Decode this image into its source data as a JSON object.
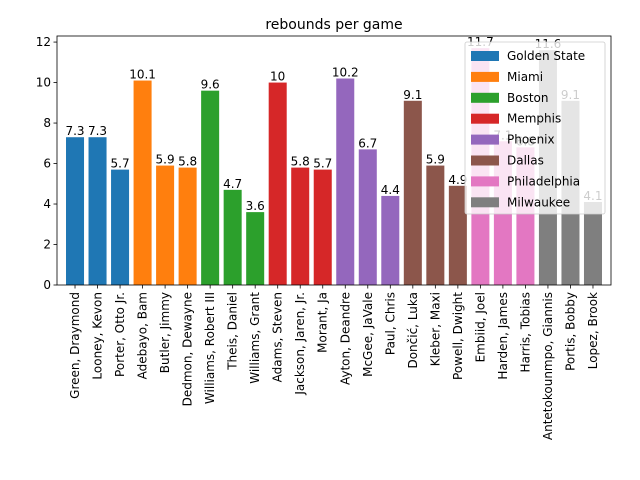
{
  "chart_data": {
    "type": "bar",
    "title": "rebounds per game",
    "xlabel": "",
    "ylabel": "",
    "ylim": [
      0,
      12.3
    ],
    "yticks": [
      0,
      2,
      4,
      6,
      8,
      10,
      12
    ],
    "grid": false,
    "legend_position": "top-right",
    "series": [
      {
        "name": "Golden State",
        "color": "#1f77b4",
        "categories": [
          "Green, Draymond",
          "Looney, Kevon",
          "Porter, Otto Jr."
        ],
        "values": [
          7.3,
          7.3,
          5.7
        ]
      },
      {
        "name": "Miami",
        "color": "#ff7f0e",
        "categories": [
          "Adebayo, Bam",
          "Butler, Jimmy",
          "Dedmon, Dewayne"
        ],
        "values": [
          10.1,
          5.9,
          5.8
        ]
      },
      {
        "name": "Boston",
        "color": "#2ca02c",
        "categories": [
          "Williams, Robert III",
          "Theis, Daniel",
          "Williams, Grant"
        ],
        "values": [
          9.6,
          4.7,
          3.6
        ]
      },
      {
        "name": "Memphis",
        "color": "#d62728",
        "categories": [
          "Adams, Steven",
          "Jackson, Jaren, Jr.",
          "Morant, Ja"
        ],
        "values": [
          10,
          5.8,
          5.7
        ]
      },
      {
        "name": "Phoenix",
        "color": "#9467bd",
        "categories": [
          "Ayton, Deandre",
          "McGee, JaVale",
          "Paul, Chris"
        ],
        "values": [
          10.2,
          6.7,
          4.4
        ]
      },
      {
        "name": "Dallas",
        "color": "#8c564b",
        "categories": [
          "Dončić, Luka",
          "Kleber, Maxi",
          "Powell, Dwight"
        ],
        "values": [
          9.1,
          5.9,
          4.9
        ]
      },
      {
        "name": "Philadelphia",
        "color": "#e377c2",
        "categories": [
          "Embiid, Joel",
          "Harden, James",
          "Harris, Tobias"
        ],
        "values": [
          11.7,
          7.1,
          6.8
        ]
      },
      {
        "name": "Milwaukee",
        "color": "#7f7f7f",
        "categories": [
          "Antetokounmpo, Giannis",
          "Portis, Bobby",
          "Lopez, Brook"
        ],
        "values": [
          11.6,
          9.1,
          4.1
        ]
      }
    ]
  }
}
